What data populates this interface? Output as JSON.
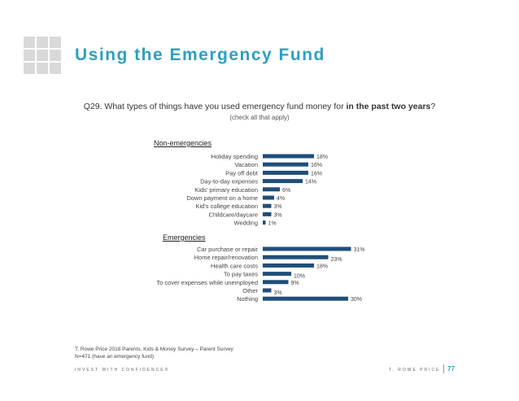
{
  "title": "Using the Emergency Fund",
  "question": {
    "prefix": "Q29. What types of things have you used emergency fund money for ",
    "bold": "in the past two years",
    "suffix": "?",
    "sub": "(check all that apply)"
  },
  "colors": {
    "bar": "#1f4e79",
    "title": "#2f9fbd"
  },
  "chart_data": {
    "type": "bar",
    "orientation": "horizontal",
    "groups": [
      {
        "name": "Non-emergencies",
        "categories": [
          "Holiday spending",
          "Vacation",
          "Pay off debt",
          "Day-to-day expenses",
          "Kids' primary education",
          "Down payment on a home",
          "Kid's college education",
          "Childcare/daycare",
          "Wedding"
        ],
        "values": [
          18,
          16,
          16,
          14,
          6,
          4,
          3,
          3,
          1
        ],
        "labels": [
          "18%",
          "16%",
          "16%",
          "14%",
          "6%",
          "4%",
          "3%",
          "3%",
          "1%"
        ]
      },
      {
        "name": "Emergencies",
        "categories": [
          "Car purchase or repair",
          "Home repair/renovation",
          "Health care costs",
          "To pay taxes",
          "To cover expenses while unemployed",
          "Other",
          "Nothing"
        ],
        "values": [
          31,
          23,
          18,
          10,
          9,
          3,
          30
        ],
        "labels": [
          "31%",
          "23%",
          "18%",
          "10%",
          "9%",
          "3%",
          "30%"
        ]
      }
    ],
    "unit": "%"
  },
  "source": {
    "line1": "T. Rowe Price 2018 Parents, Kids & Money Survey – Parent Survey",
    "line2": "N=471 (have an emergency fund)"
  },
  "footer": {
    "left": "INVEST WITH CONFIDENCE®",
    "right": "T. ROWE PRICE",
    "page": "77"
  }
}
